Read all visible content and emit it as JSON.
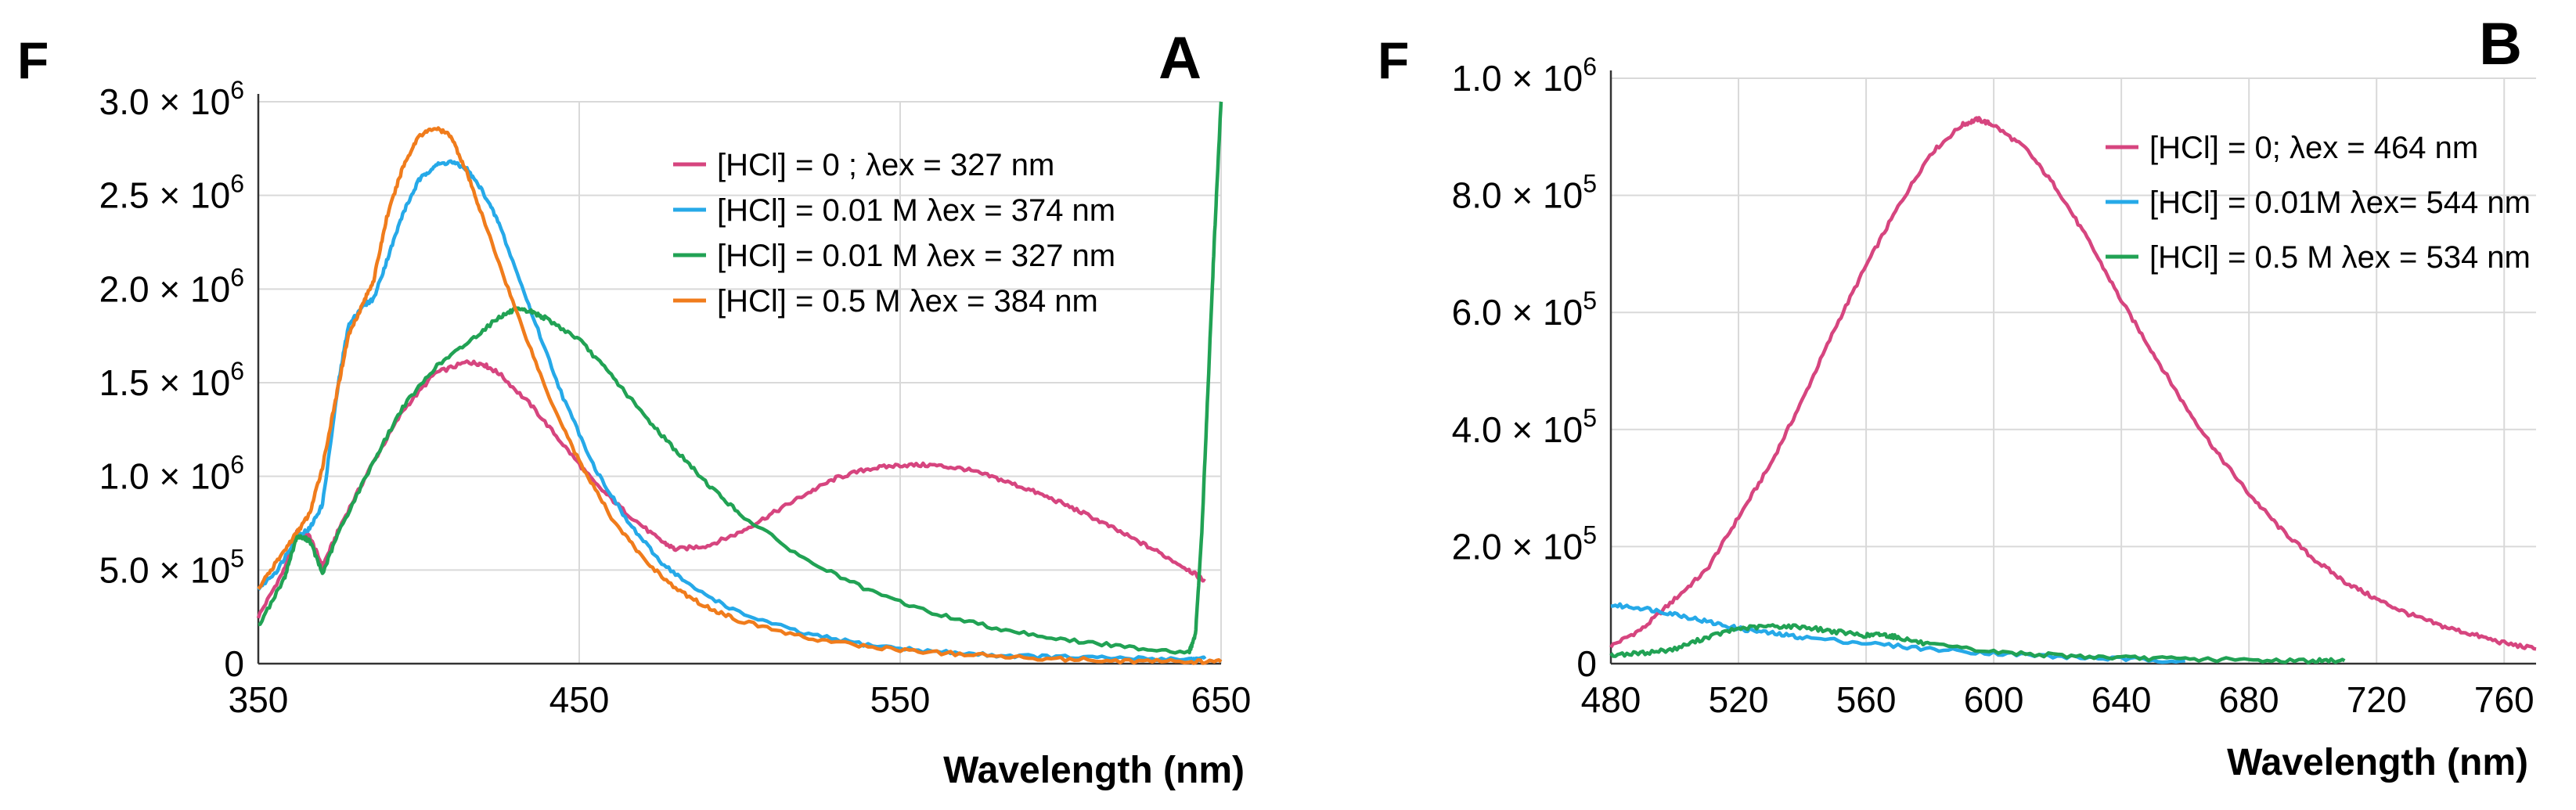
{
  "chart_data": [
    {
      "id": "A",
      "type": "line",
      "panel_letter": "A",
      "ylabel_letter": "F",
      "xlabel": "Wavelength (nm)",
      "xlim": [
        350,
        650
      ],
      "ylim": [
        0,
        3000000
      ],
      "grid": true,
      "x_ticks": [
        {
          "value": 350,
          "label": "350"
        },
        {
          "value": 450,
          "label": "450"
        },
        {
          "value": 550,
          "label": "550"
        },
        {
          "value": 650,
          "label": "650"
        }
      ],
      "y_ticks": [
        {
          "value": 0,
          "mantissa": "0",
          "exp": ""
        },
        {
          "value": 500000,
          "mantissa": "5.0 × 10",
          "exp": "5"
        },
        {
          "value": 1000000,
          "mantissa": "1.0 × 10",
          "exp": "6"
        },
        {
          "value": 1500000,
          "mantissa": "1.5 × 10",
          "exp": "6"
        },
        {
          "value": 2000000,
          "mantissa": "2.0 × 10",
          "exp": "6"
        },
        {
          "value": 2500000,
          "mantissa": "2.5 × 10",
          "exp": "6"
        },
        {
          "value": 3000000,
          "mantissa": "3.0 × 10",
          "exp": "6"
        }
      ],
      "legend_position": "top-right",
      "series": [
        {
          "name": "[HCl] = 0 ; λex = 327 nm",
          "color": "#d6457f",
          "x": [
            350,
            358,
            362,
            366,
            370,
            376,
            385,
            395,
            405,
            415,
            420,
            425,
            435,
            445,
            455,
            465,
            475,
            480,
            490,
            500,
            510,
            520,
            530,
            540,
            550,
            560,
            570,
            580,
            590,
            600,
            610,
            620,
            630,
            640,
            645
          ],
          "y": [
            250000,
            500000,
            700000,
            680000,
            520000,
            750000,
            1050000,
            1350000,
            1550000,
            1610000,
            1600000,
            1550000,
            1380000,
            1170000,
            960000,
            800000,
            660000,
            610000,
            630000,
            700000,
            800000,
            900000,
            990000,
            1040000,
            1060000,
            1060000,
            1040000,
            990000,
            930000,
            860000,
            780000,
            690000,
            600000,
            500000,
            440000
          ]
        },
        {
          "name": "[HCl] = 0.01 M λex = 374 nm",
          "color": "#26a9e8",
          "x": [
            350,
            356,
            362,
            366,
            370,
            375,
            378,
            382,
            386,
            390,
            395,
            400,
            405,
            410,
            415,
            420,
            425,
            435,
            445,
            455,
            465,
            475,
            485,
            500,
            520,
            540,
            560,
            580,
            600,
            620,
            640,
            645
          ],
          "y": [
            400000,
            500000,
            680000,
            720000,
            850000,
            1500000,
            1800000,
            1900000,
            1950000,
            2150000,
            2400000,
            2580000,
            2660000,
            2680000,
            2640000,
            2520000,
            2350000,
            1880000,
            1420000,
            1040000,
            760000,
            550000,
            410000,
            270000,
            160000,
            100000,
            65000,
            45000,
            35000,
            28000,
            25000,
            25000
          ]
        },
        {
          "name": "[HCl] = 0.01 M λex = 327 nm",
          "color": "#21a254",
          "x": [
            350,
            358,
            362,
            366,
            370,
            375,
            385,
            395,
            405,
            415,
            425,
            430,
            435,
            440,
            450,
            460,
            470,
            480,
            490,
            500,
            520,
            540,
            560,
            580,
            600,
            620,
            640,
            642,
            644,
            646,
            648,
            650
          ],
          "y": [
            200000,
            450000,
            680000,
            660000,
            480000,
            700000,
            1050000,
            1370000,
            1580000,
            1710000,
            1850000,
            1890000,
            1880000,
            1840000,
            1730000,
            1540000,
            1330000,
            1140000,
            960000,
            800000,
            560000,
            390000,
            270000,
            190000,
            130000,
            90000,
            60000,
            150000,
            700000,
            1500000,
            2300000,
            3000000
          ]
        },
        {
          "name": "[HCl] = 0.5 M λex = 384 nm",
          "color": "#f07c1c",
          "x": [
            350,
            356,
            362,
            366,
            370,
            374,
            378,
            382,
            386,
            390,
            395,
            400,
            405,
            410,
            415,
            420,
            430,
            440,
            450,
            460,
            470,
            480,
            490,
            500,
            520,
            540,
            560,
            580,
            600,
            620,
            640,
            650
          ],
          "y": [
            400000,
            550000,
            700000,
            800000,
            1050000,
            1400000,
            1750000,
            1900000,
            2050000,
            2380000,
            2650000,
            2820000,
            2860000,
            2820000,
            2620000,
            2380000,
            1900000,
            1450000,
            1080000,
            780000,
            560000,
            400000,
            300000,
            230000,
            140000,
            90000,
            60000,
            40000,
            25000,
            15000,
            10000,
            10000
          ]
        }
      ]
    },
    {
      "id": "B",
      "type": "line",
      "panel_letter": "B",
      "ylabel_letter": "F",
      "xlabel": "Wavelength (nm)",
      "xlim": [
        480,
        770
      ],
      "ylim": [
        0,
        1000000
      ],
      "grid": true,
      "x_ticks": [
        {
          "value": 480,
          "label": "480"
        },
        {
          "value": 520,
          "label": "520"
        },
        {
          "value": 560,
          "label": "560"
        },
        {
          "value": 600,
          "label": "600"
        },
        {
          "value": 640,
          "label": "640"
        },
        {
          "value": 680,
          "label": "680"
        },
        {
          "value": 720,
          "label": "720"
        },
        {
          "value": 760,
          "label": "760"
        }
      ],
      "y_ticks": [
        {
          "value": 0,
          "mantissa": "0",
          "exp": ""
        },
        {
          "value": 200000,
          "mantissa": "2.0 × 10",
          "exp": "5"
        },
        {
          "value": 400000,
          "mantissa": "4.0 × 10",
          "exp": "5"
        },
        {
          "value": 600000,
          "mantissa": "6.0 × 10",
          "exp": "5"
        },
        {
          "value": 800000,
          "mantissa": "8.0 × 10",
          "exp": "5"
        },
        {
          "value": 1000000,
          "mantissa": "1.0 × 10",
          "exp": "6"
        }
      ],
      "legend_position": "top-right",
      "series": [
        {
          "name": "[HCl] = 0; λex = 464 nm",
          "color": "#d6457f",
          "x": [
            480,
            490,
            500,
            510,
            520,
            530,
            540,
            550,
            560,
            570,
            580,
            590,
            595,
            600,
            610,
            620,
            630,
            640,
            650,
            660,
            670,
            680,
            690,
            700,
            710,
            720,
            730,
            740,
            750,
            760,
            770
          ],
          "y": [
            30000,
            60000,
            110000,
            160000,
            250000,
            340000,
            450000,
            570000,
            680000,
            780000,
            870000,
            920000,
            930000,
            920000,
            880000,
            810000,
            720000,
            620000,
            530000,
            440000,
            360000,
            290000,
            230000,
            180000,
            140000,
            110000,
            85000,
            65000,
            50000,
            35000,
            25000
          ]
        },
        {
          "name": "[HCl] = 0.01M λex= 544 nm",
          "color": "#26a9e8",
          "x": [
            480,
            490,
            500,
            510,
            520,
            530,
            540,
            560,
            580,
            600,
            620,
            640,
            660
          ],
          "y": [
            100000,
            95000,
            85000,
            72000,
            60000,
            52000,
            45000,
            35000,
            25000,
            18000,
            12000,
            8000,
            5000
          ]
        },
        {
          "name": "[HCl] = 0.5 M λex = 534 nm",
          "color": "#21a254",
          "x": [
            480,
            490,
            500,
            510,
            520,
            530,
            540,
            550,
            560,
            565,
            570,
            580,
            600,
            620,
            640,
            660,
            680,
            700,
            710
          ],
          "y": [
            15000,
            18000,
            25000,
            45000,
            60000,
            64000,
            63000,
            55000,
            48000,
            50000,
            45000,
            32000,
            20000,
            14000,
            10000,
            8000,
            6000,
            5000,
            5000
          ]
        }
      ]
    }
  ]
}
